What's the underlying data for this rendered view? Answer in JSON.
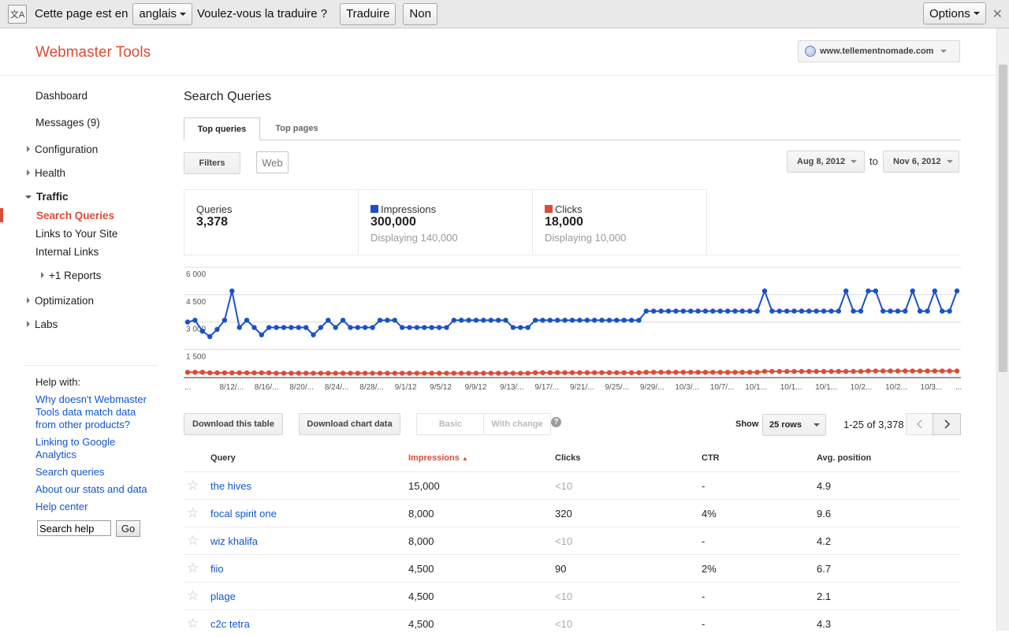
{
  "translate_bar": {
    "page_in": "Cette page est en",
    "language": "anglais",
    "question": "Voulez-vous la traduire ?",
    "translate_button": "Traduire",
    "no_button": "Non",
    "options_button": "Options",
    "close": "✕"
  },
  "header": {
    "logo": "Webmaster Tools",
    "site": "www.tellementnomade.com"
  },
  "sidebar": {
    "dashboard": "Dashboard",
    "messages": "Messages (9)",
    "configuration": "Configuration",
    "health": "Health",
    "traffic": "Traffic",
    "search_queries": "Search Queries",
    "links_to_site": "Links to Your Site",
    "internal_links": "Internal Links",
    "plus1_reports": "+1 Reports",
    "optimization": "Optimization",
    "labs": "Labs"
  },
  "help": {
    "heading": "Help with:",
    "links": [
      "Why doesn't Webmaster Tools data match data from other products?",
      "Linking to Google Analytics",
      "Search queries",
      "About our stats and data",
      "Help center"
    ],
    "search_value": "Search help",
    "go_button": "Go"
  },
  "main": {
    "title": "Search Queries",
    "tabs": [
      "Top queries",
      "Top pages"
    ],
    "filters_button": "Filters",
    "web_button": "Web",
    "date_from": "Aug 8, 2012",
    "to_label": "to",
    "date_to": "Nov 6, 2012"
  },
  "stats": {
    "queries_label": "Queries",
    "queries_value": "3,378",
    "impressions_label": "Impressions",
    "impressions_value": "300,000",
    "impressions_sub": "Displaying 140,000",
    "clicks_label": "Clicks",
    "clicks_value": "18,000",
    "clicks_sub": "Displaying 10,000"
  },
  "colors": {
    "impressions": "#1a52c6",
    "clicks": "#dd4b39",
    "brand": "#dd4b39",
    "link": "#1155cc"
  },
  "chart_data": {
    "type": "line",
    "yticks": [
      "6 000",
      "4 500",
      "3 000",
      "1 500"
    ],
    "ylim": [
      0,
      6000
    ],
    "xtick_labels": [
      "...",
      "8/12/...",
      "8/16/...",
      "8/20/...",
      "8/24/...",
      "8/28/...",
      "9/1/12",
      "9/5/12",
      "9/9/12",
      "9/13/...",
      "9/17/...",
      "9/21/...",
      "9/25/...",
      "9/29/...",
      "10/3/...",
      "10/7/...",
      "10/1...",
      "10/1...",
      "10/1...",
      "10/2...",
      "10/2...",
      "10/3...",
      "..."
    ],
    "series": [
      {
        "name": "Impressions",
        "values": [
          3000,
          3100,
          2500,
          2200,
          2600,
          3100,
          4700,
          2700,
          3100,
          2700,
          2300,
          2700,
          2700,
          2700,
          2700,
          2700,
          2700,
          2300,
          2700,
          3100,
          2700,
          3100,
          2700,
          2700,
          2700,
          2700,
          3100,
          3100,
          3100,
          2700,
          2700,
          2700,
          2700,
          2700,
          2700,
          2700,
          3100,
          3100,
          3100,
          3100,
          3100,
          3100,
          3100,
          3100,
          2700,
          2700,
          2700,
          3100,
          3100,
          3100,
          3100,
          3100,
          3100,
          3100,
          3100,
          3100,
          3100,
          3100,
          3100,
          3100,
          3100,
          3100,
          3600,
          3600,
          3600,
          3600,
          3600,
          3600,
          3600,
          3600,
          3600,
          3600,
          3600,
          3600,
          3600,
          3600,
          3600,
          3600,
          4700,
          3600,
          3600,
          3600,
          3600,
          3600,
          3600,
          3600,
          3600,
          3600,
          3600,
          4700,
          3600,
          3600,
          4700,
          4700,
          3600,
          3600,
          3600,
          3600,
          4700,
          3600,
          3600,
          4700,
          3600,
          3600,
          4700
        ]
      },
      {
        "name": "Clicks",
        "values": [
          250,
          250,
          250,
          220,
          220,
          220,
          220,
          220,
          220,
          220,
          220,
          220,
          200,
          200,
          200,
          200,
          200,
          200,
          200,
          200,
          200,
          200,
          200,
          200,
          200,
          200,
          200,
          200,
          200,
          200,
          200,
          200,
          200,
          200,
          200,
          200,
          200,
          200,
          200,
          200,
          200,
          200,
          200,
          200,
          200,
          200,
          200,
          230,
          230,
          230,
          230,
          230,
          230,
          230,
          230,
          230,
          230,
          230,
          230,
          230,
          230,
          230,
          250,
          250,
          250,
          250,
          250,
          250,
          250,
          250,
          250,
          250,
          250,
          250,
          250,
          250,
          250,
          250,
          300,
          300,
          300,
          300,
          300,
          300,
          300,
          300,
          300,
          300,
          300,
          300,
          300,
          300,
          320,
          320,
          320,
          320,
          320,
          320,
          320,
          320,
          320,
          320,
          320,
          320,
          320
        ]
      }
    ]
  },
  "controls": {
    "download_table": "Download this table",
    "download_chart": "Download chart data",
    "basic": "Basic",
    "with_change": "With change",
    "help_icon": "?",
    "show_label": "Show",
    "rows_select": "25 rows",
    "range": "1-25 of 3,378"
  },
  "table": {
    "headers": [
      "Query",
      "Impressions",
      "Clicks",
      "CTR",
      "Avg. position"
    ],
    "sort_indicator": "▲",
    "rows": [
      {
        "query": "the hives",
        "impressions": "15,000",
        "clicks": "<10",
        "ctr": "-",
        "position": "4.9"
      },
      {
        "query": "focal spirit one",
        "impressions": "8,000",
        "clicks": "320",
        "ctr": "4%",
        "position": "9.6"
      },
      {
        "query": "wiz khalifa",
        "impressions": "8,000",
        "clicks": "<10",
        "ctr": "-",
        "position": "4.2"
      },
      {
        "query": "fiio",
        "impressions": "4,500",
        "clicks": "90",
        "ctr": "2%",
        "position": "6.7"
      },
      {
        "query": "plage",
        "impressions": "4,500",
        "clicks": "<10",
        "ctr": "-",
        "position": "2.1"
      },
      {
        "query": "c2c tetra",
        "impressions": "4,500",
        "clicks": "<10",
        "ctr": "-",
        "position": "4.3"
      }
    ]
  }
}
